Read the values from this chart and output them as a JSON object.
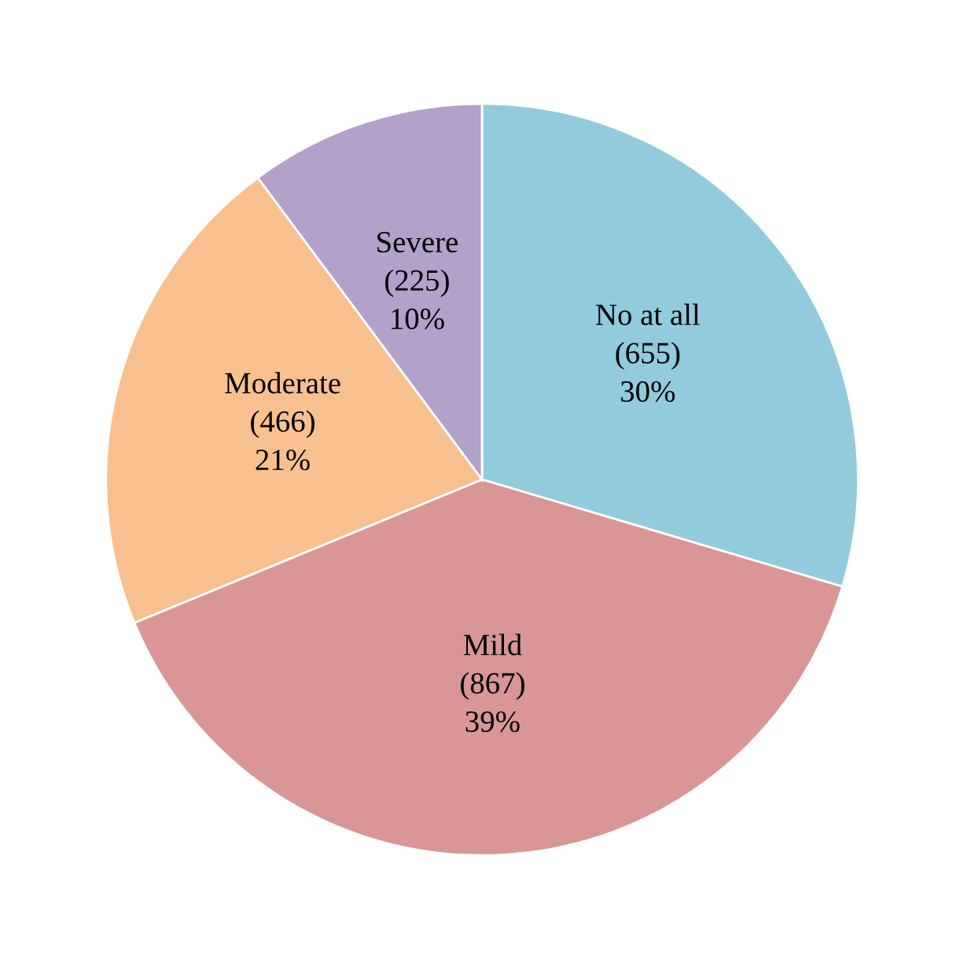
{
  "chart_data": {
    "type": "pie",
    "categories": [
      "No at all",
      "Mild",
      "Moderate",
      "Severe"
    ],
    "values": [
      655,
      867,
      466,
      225
    ],
    "value_labels": [
      "(655)\n30%",
      "(867)\n39%",
      "(466)\n21%",
      "(225)\n10%"
    ],
    "colors": [
      "#92cbdc",
      "#d99694",
      "#f9c08f",
      "#b2a1c8"
    ]
  }
}
